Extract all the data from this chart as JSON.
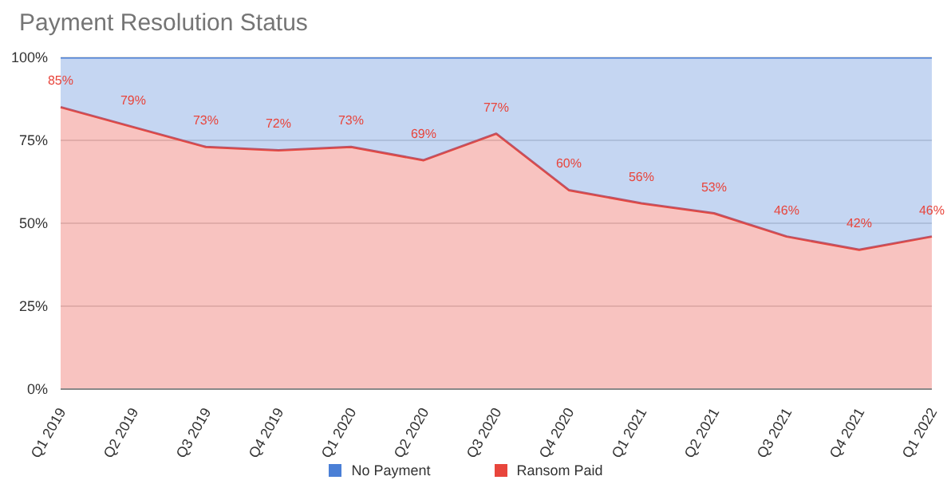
{
  "chart_data": {
    "type": "area",
    "title": "Payment Resolution Status",
    "stacked": true,
    "categories": [
      "Q1 2019",
      "Q2 2019",
      "Q3 2019",
      "Q4 2019",
      "Q1 2020",
      "Q2 2020",
      "Q3 2020",
      "Q4 2020",
      "Q1 2021",
      "Q2 2021",
      "Q3 2021",
      "Q4 2021",
      "Q1 2022"
    ],
    "series": [
      {
        "name": "Ransom Paid",
        "color": "#e8453c",
        "values": [
          85,
          79,
          73,
          72,
          73,
          69,
          77,
          60,
          56,
          53,
          46,
          42,
          46
        ],
        "value_labels": [
          "85%",
          "79%",
          "73%",
          "72%",
          "73%",
          "69%",
          "77%",
          "60%",
          "56%",
          "53%",
          "46%",
          "42%",
          "46%"
        ]
      },
      {
        "name": "No Payment",
        "color": "#4a7fd6",
        "values": [
          15,
          21,
          27,
          28,
          27,
          31,
          23,
          40,
          44,
          47,
          54,
          58,
          54
        ]
      }
    ],
    "ylim": [
      0,
      100
    ],
    "yticks": [
      {
        "value": 0,
        "label": "0%"
      },
      {
        "value": 25,
        "label": "25%"
      },
      {
        "value": 50,
        "label": "50%"
      },
      {
        "value": 75,
        "label": "75%"
      },
      {
        "value": 100,
        "label": "100%"
      }
    ],
    "grid": "y",
    "legend": "bottom"
  }
}
